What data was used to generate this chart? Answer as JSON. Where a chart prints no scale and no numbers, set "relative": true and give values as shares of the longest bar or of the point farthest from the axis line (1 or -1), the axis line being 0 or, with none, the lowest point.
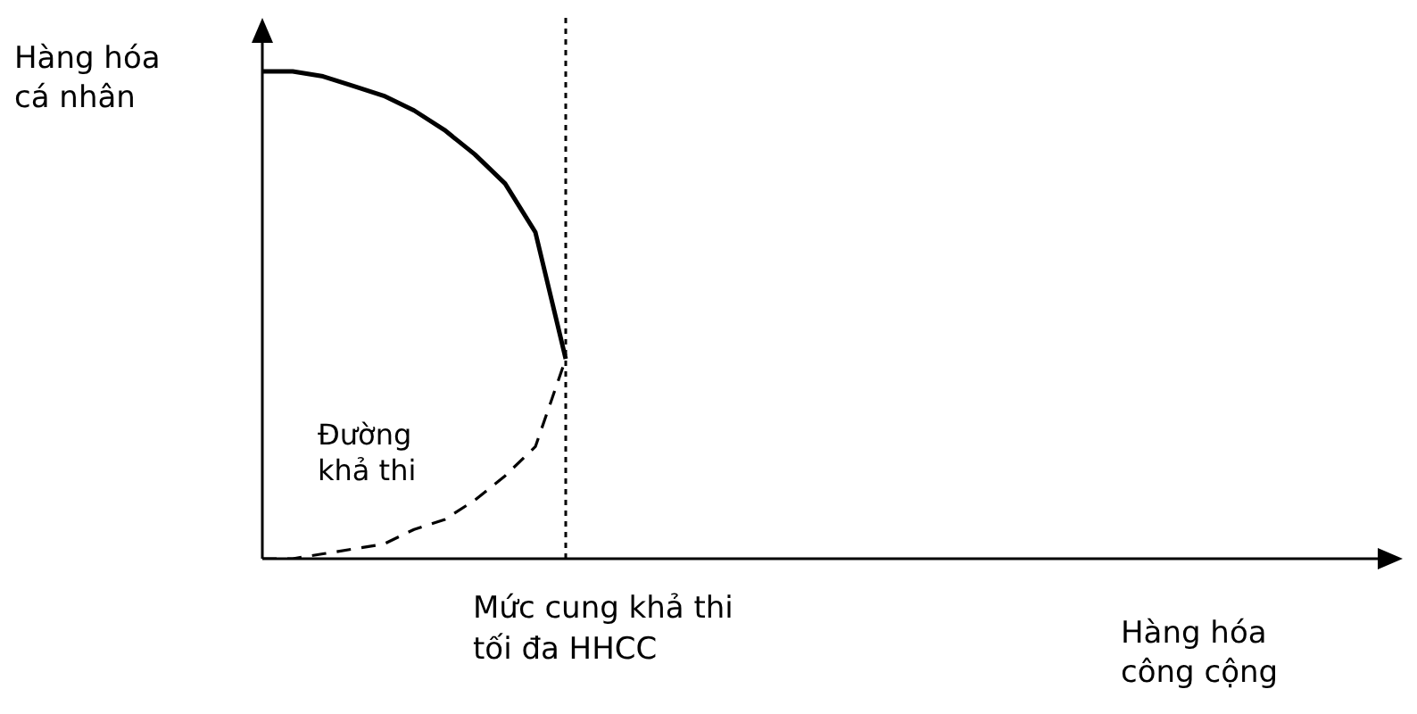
{
  "chart_data": {
    "type": "line",
    "relative": true,
    "xlabel": "Hàng hóa công cộng",
    "ylabel": "Hàng hóa cá nhân",
    "tick_labels": false,
    "grid": false,
    "legend": false,
    "marker": "none",
    "categories": [
      null,
      null,
      null,
      null,
      null,
      null,
      null,
      null,
      null,
      null,
      null,
      null,
      null,
      null,
      null,
      null,
      null,
      null,
      null,
      null,
      null,
      null,
      null,
      null,
      null,
      null,
      null,
      null,
      null,
      null,
      null,
      null,
      null,
      null,
      null,
      null,
      null,
      null
    ],
    "series": [
      {
        "color": "#000000",
        "line_style": "solid",
        "values": [
          1,
          1,
          0.99,
          0.97,
          0.95,
          0.92,
          0.88,
          0.83,
          0.77,
          0.67,
          0.41,
          null,
          null,
          null,
          null,
          null,
          null,
          null,
          null,
          null,
          null,
          null,
          null,
          null,
          null,
          null,
          null,
          null,
          null,
          null,
          null,
          null,
          null,
          null,
          null,
          null,
          null,
          null
        ]
      },
      {
        "color": "#000000",
        "line_style": "dashed",
        "values": [
          0,
          0,
          0.01,
          0.02,
          0.03,
          0.06,
          0.08,
          0.12,
          0.17,
          0.23,
          0.41,
          null,
          null,
          null,
          null,
          null,
          null,
          null,
          null,
          null,
          null,
          null,
          null,
          null,
          null,
          null,
          null,
          null,
          null,
          null,
          null,
          null,
          null,
          null,
          null,
          null,
          null,
          null
        ]
      }
    ],
    "annotations": [
      "Mức cung khả thi tối đa HHCC",
      "Đường khả thi"
    ]
  }
}
